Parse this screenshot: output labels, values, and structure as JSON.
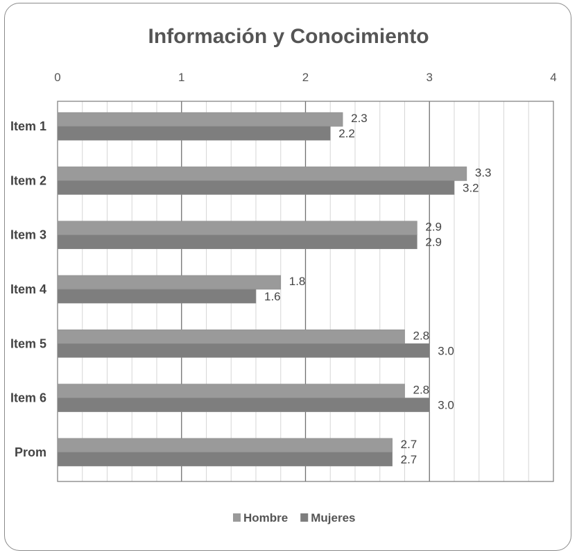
{
  "chart_data": {
    "type": "bar",
    "orientation": "horizontal",
    "title": "Información y Conocimiento",
    "categories": [
      "Item 1",
      "Item 2",
      "Item 3",
      "Item 4",
      "Item 5",
      "Item 6",
      "Prom"
    ],
    "series": [
      {
        "name": "Hombre",
        "values": [
          2.3,
          3.3,
          2.9,
          1.8,
          2.8,
          2.8,
          2.7
        ],
        "labels": [
          "2.3",
          "3.3",
          "2.9",
          "1.8",
          "2.8",
          "2.8",
          "2.7"
        ],
        "color": "#9a9a9a"
      },
      {
        "name": "Mujeres",
        "values": [
          2.2,
          3.2,
          2.9,
          1.6,
          3.0,
          3.0,
          2.7
        ],
        "labels": [
          "2.2",
          "3.2",
          "2.9",
          "1.6",
          "3.0",
          "3.0",
          "2.7"
        ],
        "color": "#7e7e7e"
      }
    ],
    "xlim": [
      0,
      4
    ],
    "x_ticks": [
      "0",
      "1",
      "2",
      "3",
      "4"
    ],
    "axis_position": "top",
    "grid": true,
    "legend_position": "bottom"
  }
}
